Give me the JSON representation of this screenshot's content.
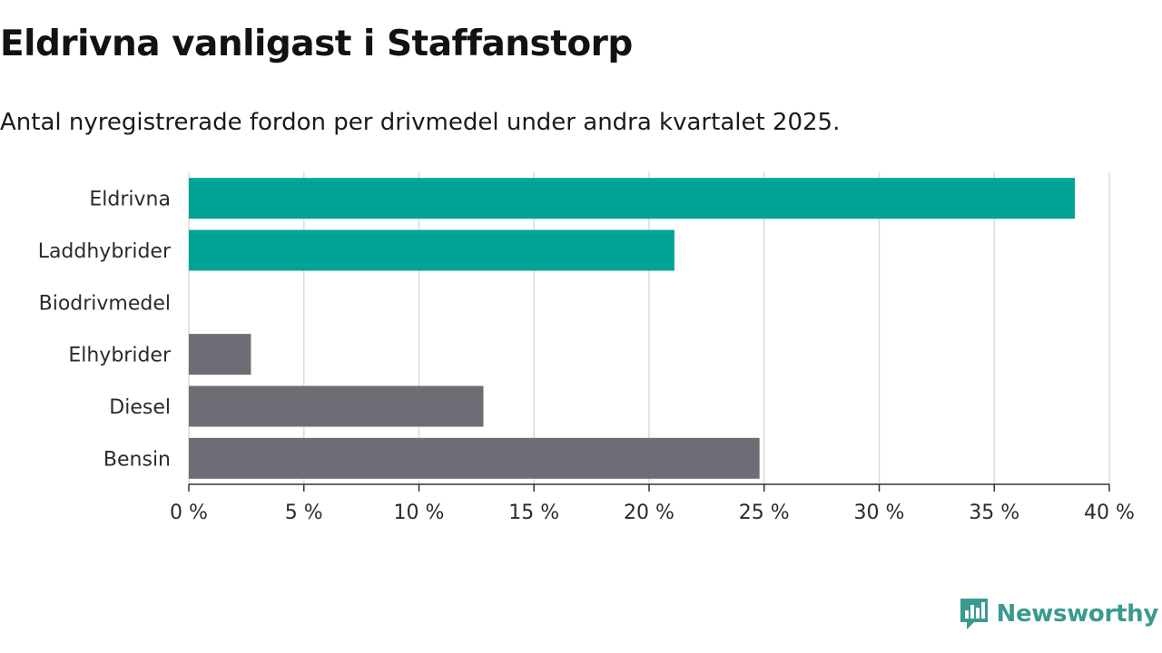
{
  "header": {
    "title": "Eldrivna vanligast i Staffanstorp",
    "subtitle": "Antal nyregistrerade fordon per drivmedel under andra kvartalet 2025."
  },
  "brand": {
    "name": "Newsworthy"
  },
  "colors": {
    "highlight": "#00a497",
    "muted": "#6e6d75",
    "grid": "#dcdcdc",
    "axis": "#333333",
    "brand": "#3a9a8f"
  },
  "chart_data": {
    "type": "bar",
    "orientation": "horizontal",
    "title": "Eldrivna vanligast i Staffanstorp",
    "subtitle": "Antal nyregistrerade fordon per drivmedel under andra kvartalet 2025.",
    "categories": [
      "Eldrivna",
      "Laddhybrider",
      "Biodrivmedel",
      "Elhybrider",
      "Diesel",
      "Bensin"
    ],
    "values": [
      38.5,
      21.1,
      0,
      2.7,
      12.8,
      24.8
    ],
    "groups": [
      "highlight",
      "highlight",
      "highlight",
      "muted",
      "muted",
      "muted"
    ],
    "unit": "%",
    "xlim": [
      0,
      40
    ],
    "ticks": [
      0,
      5,
      10,
      15,
      20,
      25,
      30,
      35,
      40
    ],
    "tick_labels": [
      "0 %",
      "5 %",
      "10 %",
      "15 %",
      "20 %",
      "25 %",
      "30 %",
      "35 %",
      "40 %"
    ],
    "grid": true,
    "legend": "none"
  }
}
